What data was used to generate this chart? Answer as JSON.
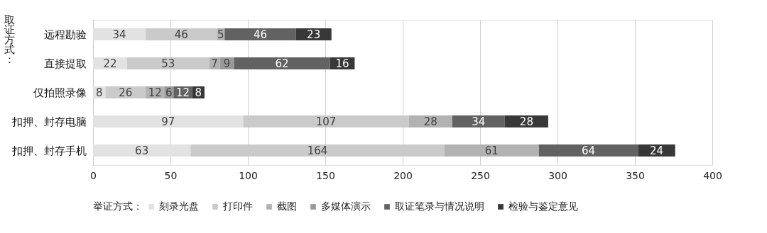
{
  "chart_data": {
    "type": "bar",
    "orientation": "horizontal",
    "stacked": true,
    "categories": [
      "远程勘验",
      "直接提取",
      "仅拍照录像",
      "扣押、封存电脑",
      "扣押、封存手机"
    ],
    "ylabel": "取证方式：",
    "legend_title": "举证方式：",
    "series": [
      {
        "name": "刻录光盘",
        "color": "#e2e2e2",
        "values": [
          34,
          22,
          8,
          97,
          63
        ]
      },
      {
        "name": "打印件",
        "color": "#cacaca",
        "values": [
          46,
          53,
          26,
          107,
          164
        ]
      },
      {
        "name": "截图",
        "color": "#b2b2b2",
        "values": [
          5,
          7,
          12,
          28,
          61
        ]
      },
      {
        "name": "多媒体演示",
        "color": "#9a9a9a",
        "values": [
          null,
          9,
          6,
          null,
          null
        ]
      },
      {
        "name": "取证笔录与情况说明",
        "color": "#626262",
        "values": [
          46,
          62,
          12,
          34,
          64
        ]
      },
      {
        "name": "检验与鉴定意见",
        "color": "#383838",
        "values": [
          23,
          16,
          8,
          28,
          24
        ]
      }
    ],
    "xlim": [
      0,
      400
    ],
    "xticks": [
      0,
      50,
      100,
      150,
      200,
      250,
      300,
      350,
      400
    ],
    "grid": "x",
    "legend": "bottom",
    "data_labels": true
  }
}
